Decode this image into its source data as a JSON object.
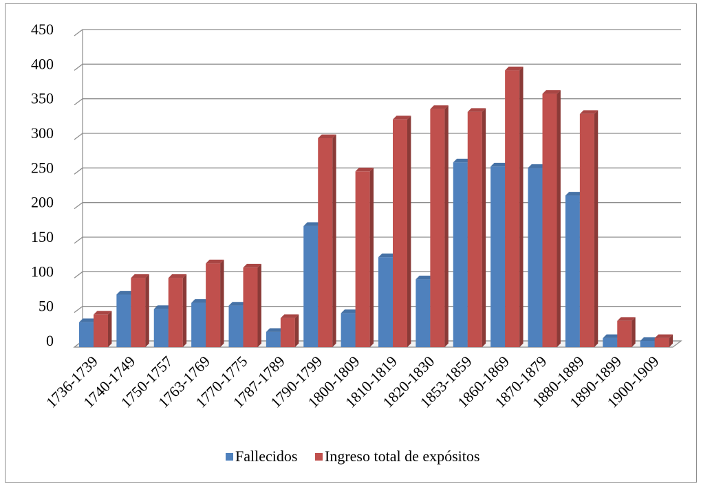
{
  "chart_data": {
    "type": "bar",
    "title": "",
    "xlabel": "",
    "ylabel": "",
    "ylim": [
      0,
      450
    ],
    "yticks": [
      0,
      50,
      100,
      150,
      200,
      250,
      300,
      350,
      400,
      450
    ],
    "grid": true,
    "legend_position": "bottom",
    "categories": [
      "1736-1739",
      "1740-1749",
      "1750-1757",
      "1763-1769",
      "1770-1775",
      "1787-1789",
      "1790-1799",
      "1800-1809",
      "1810-1819",
      "1820-1830",
      "1853-1859",
      "1860-1869",
      "1870-1879",
      "1880-1889",
      "1890-1899",
      "1900-1909"
    ],
    "series": [
      {
        "name": "Fallecidos",
        "color": "#4f81bd",
        "values": [
          36,
          76,
          55,
          64,
          60,
          22,
          175,
          49,
          130,
          98,
          267,
          261,
          259,
          219,
          13,
          9
        ]
      },
      {
        "name": "Ingreso total de expósitos",
        "color": "#c0504d",
        "values": [
          47,
          100,
          100,
          121,
          115,
          42,
          302,
          254,
          329,
          344,
          340,
          400,
          366,
          337,
          38,
          13
        ]
      }
    ]
  }
}
